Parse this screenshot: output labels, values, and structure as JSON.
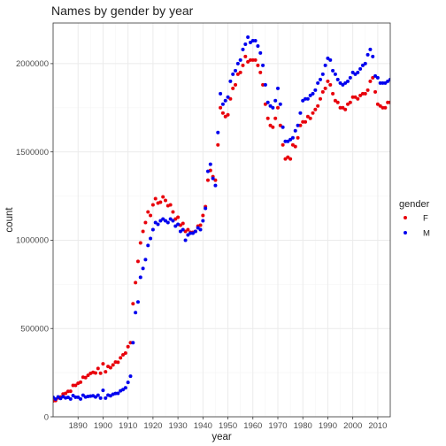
{
  "chart_data": {
    "type": "scatter",
    "title": "Names by gender by year",
    "xlabel": "year",
    "ylabel": "count",
    "xlim": [
      1880,
      2015
    ],
    "ylim": [
      0,
      2230000
    ],
    "x_ticks": [
      1890,
      1900,
      1910,
      1920,
      1930,
      1940,
      1950,
      1960,
      1970,
      1980,
      1990,
      2000,
      2010
    ],
    "x_tick_labels": [
      "1890",
      "1900",
      "1910",
      "1920",
      "1930",
      "1940",
      "1950",
      "1960",
      "1970",
      "1980",
      "1990",
      "2000",
      "2010"
    ],
    "y_ticks": [
      0,
      500000,
      1000000,
      1500000,
      2000000
    ],
    "y_tick_labels": [
      "0",
      "500000",
      "1000000",
      "1500000",
      "2000000"
    ],
    "grid": true,
    "legend": {
      "title": "gender",
      "position": "right"
    },
    "series": [
      {
        "name": "F",
        "color": "#e8000b",
        "x": [
          1880,
          1881,
          1882,
          1883,
          1884,
          1885,
          1886,
          1887,
          1888,
          1889,
          1890,
          1891,
          1892,
          1893,
          1894,
          1895,
          1896,
          1897,
          1898,
          1899,
          1900,
          1901,
          1902,
          1903,
          1904,
          1905,
          1906,
          1907,
          1908,
          1909,
          1910,
          1911,
          1912,
          1913,
          1914,
          1915,
          1916,
          1917,
          1918,
          1919,
          1920,
          1921,
          1922,
          1923,
          1924,
          1925,
          1926,
          1927,
          1928,
          1929,
          1930,
          1931,
          1932,
          1933,
          1934,
          1935,
          1936,
          1937,
          1938,
          1939,
          1940,
          1941,
          1942,
          1943,
          1944,
          1945,
          1946,
          1947,
          1948,
          1949,
          1950,
          1951,
          1952,
          1953,
          1954,
          1955,
          1956,
          1957,
          1958,
          1959,
          1960,
          1961,
          1962,
          1963,
          1964,
          1965,
          1966,
          1967,
          1968,
          1969,
          1970,
          1971,
          1972,
          1973,
          1974,
          1975,
          1976,
          1977,
          1978,
          1979,
          1980,
          1981,
          1982,
          1983,
          1984,
          1985,
          1986,
          1987,
          1988,
          1989,
          1990,
          1991,
          1992,
          1993,
          1994,
          1995,
          1996,
          1997,
          1998,
          1999,
          2000,
          2001,
          2002,
          2003,
          2004,
          2005,
          2006,
          2007,
          2008,
          2009,
          2010,
          2011,
          2012,
          2013,
          2014,
          2015
        ],
        "values": [
          90000,
          92000,
          107000,
          112000,
          129000,
          133000,
          144000,
          145000,
          178000,
          178000,
          190000,
          196000,
          224000,
          222000,
          235000,
          246000,
          252000,
          248000,
          274000,
          247000,
          300000,
          255000,
          285000,
          278000,
          294000,
          310000,
          309000,
          334000,
          351000,
          361000,
          397000,
          420000,
          640000,
          760000,
          880000,
          985000,
          1050000,
          1100000,
          1160000,
          1140000,
          1200000,
          1235000,
          1210000,
          1215000,
          1245000,
          1225000,
          1195000,
          1200000,
          1160000,
          1120000,
          1130000,
          1085000,
          1095000,
          1050000,
          1060000,
          1045000,
          1045000,
          1050000,
          1080000,
          1085000,
          1140000,
          1190000,
          1340000,
          1395000,
          1360000,
          1340000,
          1540000,
          1750000,
          1720000,
          1700000,
          1710000,
          1800000,
          1860000,
          1880000,
          1940000,
          1950000,
          1990000,
          2040000,
          2010000,
          2020000,
          2020000,
          2020000,
          1990000,
          1950000,
          1880000,
          1770000,
          1690000,
          1650000,
          1640000,
          1690000,
          1750000,
          1650000,
          1540000,
          1460000,
          1470000,
          1460000,
          1540000,
          1530000,
          1580000,
          1650000,
          1670000,
          1670000,
          1700000,
          1690000,
          1720000,
          1740000,
          1760000,
          1800000,
          1840000,
          1860000,
          1900000,
          1880000,
          1830000,
          1790000,
          1780000,
          1750000,
          1750000,
          1740000,
          1770000,
          1780000,
          1810000,
          1810000,
          1800000,
          1820000,
          1830000,
          1830000,
          1850000,
          1900000,
          1920000,
          1840000,
          1770000,
          1760000,
          1750000,
          1750000,
          1780000,
          1780000
        ]
      },
      {
        "name": "M",
        "color": "#0000ee",
        "x": [
          1880,
          1881,
          1882,
          1883,
          1884,
          1885,
          1886,
          1887,
          1888,
          1889,
          1890,
          1891,
          1892,
          1893,
          1894,
          1895,
          1896,
          1897,
          1898,
          1899,
          1900,
          1901,
          1902,
          1903,
          1904,
          1905,
          1906,
          1907,
          1908,
          1909,
          1910,
          1911,
          1912,
          1913,
          1914,
          1915,
          1916,
          1917,
          1918,
          1919,
          1920,
          1921,
          1922,
          1923,
          1924,
          1925,
          1926,
          1927,
          1928,
          1929,
          1930,
          1931,
          1932,
          1933,
          1934,
          1935,
          1936,
          1937,
          1938,
          1939,
          1940,
          1941,
          1942,
          1943,
          1944,
          1945,
          1946,
          1947,
          1948,
          1949,
          1950,
          1951,
          1952,
          1953,
          1954,
          1955,
          1956,
          1957,
          1958,
          1959,
          1960,
          1961,
          1962,
          1963,
          1964,
          1965,
          1966,
          1967,
          1968,
          1969,
          1970,
          1971,
          1972,
          1973,
          1974,
          1975,
          1976,
          1977,
          1978,
          1979,
          1980,
          1981,
          1982,
          1983,
          1984,
          1985,
          1986,
          1987,
          1988,
          1989,
          1990,
          1991,
          1992,
          1993,
          1994,
          1995,
          1996,
          1997,
          1998,
          1999,
          2000,
          2001,
          2002,
          2003,
          2004,
          2005,
          2006,
          2007,
          2008,
          2009,
          2010,
          2011,
          2012,
          2013,
          2014,
          2015
        ],
        "values": [
          110000,
          100000,
          113000,
          104000,
          114000,
          107000,
          110000,
          101000,
          120000,
          111000,
          111000,
          101000,
          122000,
          112000,
          115000,
          117000,
          119000,
          112000,
          122000,
          106000,
          150000,
          106000,
          123000,
          119000,
          128000,
          132000,
          133000,
          147000,
          154000,
          164000,
          195000,
          230000,
          420000,
          590000,
          650000,
          790000,
          840000,
          890000,
          970000,
          1010000,
          1060000,
          1100000,
          1090000,
          1110000,
          1120000,
          1110000,
          1100000,
          1120000,
          1110000,
          1080000,
          1090000,
          1050000,
          1060000,
          1000000,
          1030000,
          1040000,
          1040000,
          1050000,
          1070000,
          1060000,
          1110000,
          1180000,
          1390000,
          1430000,
          1350000,
          1310000,
          1610000,
          1830000,
          1770000,
          1790000,
          1810000,
          1900000,
          1940000,
          1960000,
          2000000,
          2020000,
          2080000,
          2110000,
          2150000,
          2120000,
          2130000,
          2130000,
          2100000,
          2060000,
          1990000,
          1880000,
          1780000,
          1760000,
          1750000,
          1790000,
          1860000,
          1770000,
          1640000,
          1560000,
          1560000,
          1570000,
          1580000,
          1620000,
          1650000,
          1720000,
          1790000,
          1800000,
          1800000,
          1820000,
          1830000,
          1850000,
          1890000,
          1910000,
          1940000,
          1990000,
          2030000,
          2020000,
          1960000,
          1940000,
          1910000,
          1890000,
          1880000,
          1890000,
          1900000,
          1920000,
          1950000,
          1940000,
          1950000,
          1970000,
          1990000,
          2000000,
          2050000,
          2080000,
          2040000,
          1930000,
          1920000,
          1890000,
          1890000,
          1890000,
          1900000,
          1910000
        ]
      }
    ]
  }
}
